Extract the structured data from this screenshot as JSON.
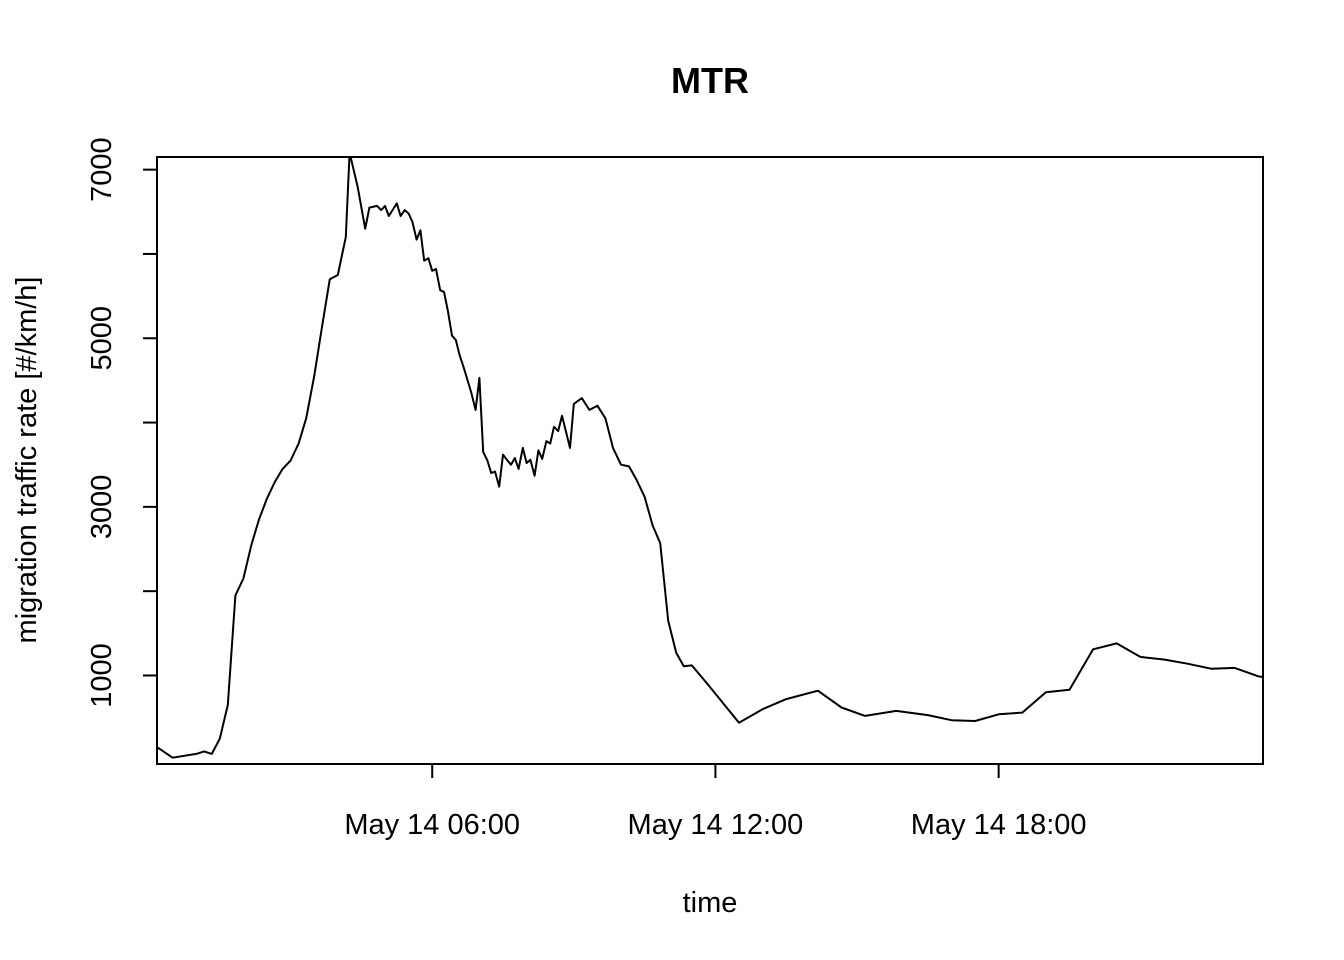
{
  "chart_data": {
    "type": "line",
    "title": "MTR",
    "xlabel": "time",
    "ylabel": "migration traffic rate [#/km/h]",
    "x_unit": "hours",
    "xlim": [
      0.17,
      23.6
    ],
    "ylim": [
      -50,
      7150
    ],
    "x_ticks": [
      {
        "value": 6,
        "label": "May 14 06:00"
      },
      {
        "value": 12,
        "label": "May 14 12:00"
      },
      {
        "value": 18,
        "label": "May 14 18:00"
      }
    ],
    "y_ticks": [
      {
        "value": 1000,
        "label": "1000"
      },
      {
        "value": 2000,
        "label": ""
      },
      {
        "value": 3000,
        "label": "3000"
      },
      {
        "value": 4000,
        "label": ""
      },
      {
        "value": 5000,
        "label": "5000"
      },
      {
        "value": 6000,
        "label": ""
      },
      {
        "value": 7000,
        "label": "7000"
      }
    ],
    "grid": false,
    "series": [
      {
        "points": [
          [
            0.17,
            150
          ],
          [
            0.5,
            25
          ],
          [
            1.0,
            70
          ],
          [
            1.17,
            100
          ],
          [
            1.33,
            70
          ],
          [
            1.5,
            250
          ],
          [
            1.67,
            650
          ],
          [
            1.83,
            1950
          ],
          [
            2.0,
            2150
          ],
          [
            2.17,
            2550
          ],
          [
            2.33,
            2850
          ],
          [
            2.5,
            3100
          ],
          [
            2.67,
            3300
          ],
          [
            2.83,
            3450
          ],
          [
            3.0,
            3550
          ],
          [
            3.17,
            3750
          ],
          [
            3.33,
            4050
          ],
          [
            3.5,
            4550
          ],
          [
            3.67,
            5150
          ],
          [
            3.83,
            5700
          ],
          [
            4.0,
            5750
          ],
          [
            4.17,
            6200
          ],
          [
            4.25,
            7200
          ],
          [
            4.42,
            6800
          ],
          [
            4.58,
            6300
          ],
          [
            4.67,
            6550
          ],
          [
            4.83,
            6570
          ],
          [
            4.92,
            6520
          ],
          [
            5.0,
            6570
          ],
          [
            5.08,
            6450
          ],
          [
            5.25,
            6600
          ],
          [
            5.33,
            6450
          ],
          [
            5.42,
            6520
          ],
          [
            5.5,
            6480
          ],
          [
            5.58,
            6380
          ],
          [
            5.67,
            6170
          ],
          [
            5.75,
            6280
          ],
          [
            5.83,
            5920
          ],
          [
            5.92,
            5950
          ],
          [
            6.0,
            5800
          ],
          [
            6.08,
            5820
          ],
          [
            6.17,
            5570
          ],
          [
            6.25,
            5550
          ],
          [
            6.33,
            5330
          ],
          [
            6.42,
            5030
          ],
          [
            6.5,
            4980
          ],
          [
            6.58,
            4800
          ],
          [
            6.67,
            4650
          ],
          [
            6.75,
            4500
          ],
          [
            6.83,
            4350
          ],
          [
            6.92,
            4150
          ],
          [
            7.0,
            4530
          ],
          [
            7.08,
            3650
          ],
          [
            7.17,
            3550
          ],
          [
            7.25,
            3400
          ],
          [
            7.33,
            3420
          ],
          [
            7.42,
            3240
          ],
          [
            7.5,
            3620
          ],
          [
            7.58,
            3560
          ],
          [
            7.67,
            3500
          ],
          [
            7.75,
            3580
          ],
          [
            7.83,
            3450
          ],
          [
            7.92,
            3700
          ],
          [
            8.0,
            3520
          ],
          [
            8.08,
            3560
          ],
          [
            8.17,
            3370
          ],
          [
            8.25,
            3670
          ],
          [
            8.33,
            3570
          ],
          [
            8.42,
            3780
          ],
          [
            8.5,
            3750
          ],
          [
            8.58,
            3950
          ],
          [
            8.67,
            3900
          ],
          [
            8.75,
            4080
          ],
          [
            8.83,
            3900
          ],
          [
            8.92,
            3700
          ],
          [
            9.0,
            4220
          ],
          [
            9.17,
            4290
          ],
          [
            9.33,
            4150
          ],
          [
            9.5,
            4200
          ],
          [
            9.67,
            4050
          ],
          [
            9.83,
            3700
          ],
          [
            10.0,
            3500
          ],
          [
            10.17,
            3480
          ],
          [
            10.33,
            3320
          ],
          [
            10.5,
            3120
          ],
          [
            10.67,
            2780
          ],
          [
            10.83,
            2570
          ],
          [
            11.0,
            1650
          ],
          [
            11.17,
            1270
          ],
          [
            11.33,
            1110
          ],
          [
            11.5,
            1120
          ],
          [
            11.83,
            900
          ],
          [
            12.5,
            440
          ],
          [
            13.0,
            600
          ],
          [
            13.5,
            720
          ],
          [
            14.17,
            820
          ],
          [
            14.67,
            620
          ],
          [
            15.17,
            520
          ],
          [
            15.83,
            580
          ],
          [
            16.5,
            530
          ],
          [
            17.0,
            470
          ],
          [
            17.5,
            460
          ],
          [
            18.0,
            540
          ],
          [
            18.5,
            560
          ],
          [
            19.0,
            800
          ],
          [
            19.5,
            830
          ],
          [
            20.0,
            1310
          ],
          [
            20.5,
            1380
          ],
          [
            21.0,
            1220
          ],
          [
            21.5,
            1190
          ],
          [
            22.0,
            1140
          ],
          [
            22.5,
            1080
          ],
          [
            23.0,
            1090
          ],
          [
            23.5,
            990
          ],
          [
            24.0,
            940
          ]
        ]
      }
    ]
  }
}
